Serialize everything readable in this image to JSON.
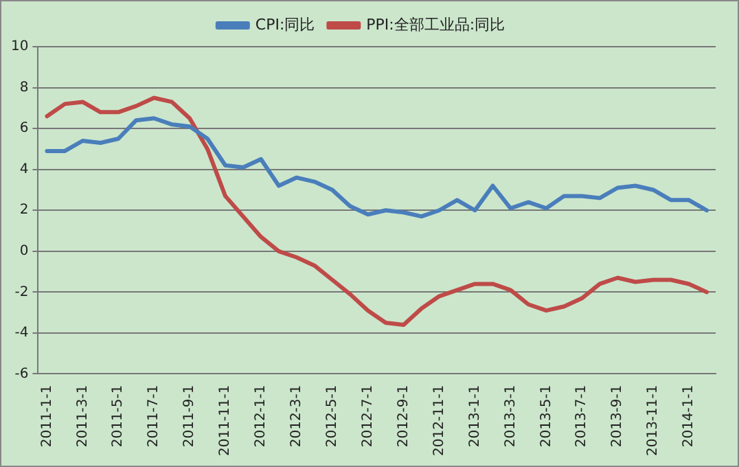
{
  "chart_data": {
    "type": "line",
    "categories": [
      "2011-1-1",
      null,
      "2011-3-1",
      null,
      "2011-5-1",
      null,
      "2011-7-1",
      null,
      "2011-9-1",
      null,
      "2011-11-1",
      null,
      "2012-1-1",
      null,
      "2012-3-1",
      null,
      "2012-5-1",
      null,
      "2012-7-1",
      null,
      "2012-9-1",
      null,
      "2012-11-1",
      null,
      "2013-1-1",
      null,
      "2013-3-1",
      null,
      "2013-5-1",
      null,
      "2013-7-1",
      null,
      "2013-9-1",
      null,
      "2013-11-1",
      null,
      "2014-1-1",
      null
    ],
    "series": [
      {
        "name": "CPI:同比",
        "color": "#4a7ebb",
        "values": [
          4.9,
          4.9,
          5.4,
          5.3,
          5.5,
          6.4,
          6.5,
          6.2,
          6.1,
          5.5,
          4.2,
          4.1,
          4.5,
          3.2,
          3.6,
          3.4,
          3.0,
          2.2,
          1.8,
          2.0,
          1.9,
          1.7,
          2.0,
          2.5,
          2.0,
          3.2,
          2.1,
          2.4,
          2.1,
          2.7,
          2.7,
          2.6,
          3.1,
          3.2,
          3.0,
          2.5,
          2.5,
          2.0
        ]
      },
      {
        "name": "PPI:全部工业品:同比",
        "color": "#be4b48",
        "values": [
          6.6,
          7.2,
          7.3,
          6.8,
          6.8,
          7.1,
          7.5,
          7.3,
          6.5,
          5.0,
          2.7,
          1.7,
          0.7,
          0.0,
          -0.3,
          -0.7,
          -1.4,
          -2.1,
          -2.9,
          -3.5,
          -3.6,
          -2.8,
          -2.2,
          -1.9,
          -1.6,
          -1.6,
          -1.9,
          -2.6,
          -2.9,
          -2.7,
          -2.3,
          -1.6,
          -1.3,
          -1.5,
          -1.4,
          -1.4,
          -1.6,
          -2.0
        ]
      }
    ],
    "ylim": [
      -6,
      10
    ],
    "yticks": [
      -6,
      -4,
      -2,
      0,
      2,
      4,
      6,
      8,
      10
    ],
    "grid": "y",
    "legend": "top",
    "marker": "none",
    "line_style": "solid"
  }
}
